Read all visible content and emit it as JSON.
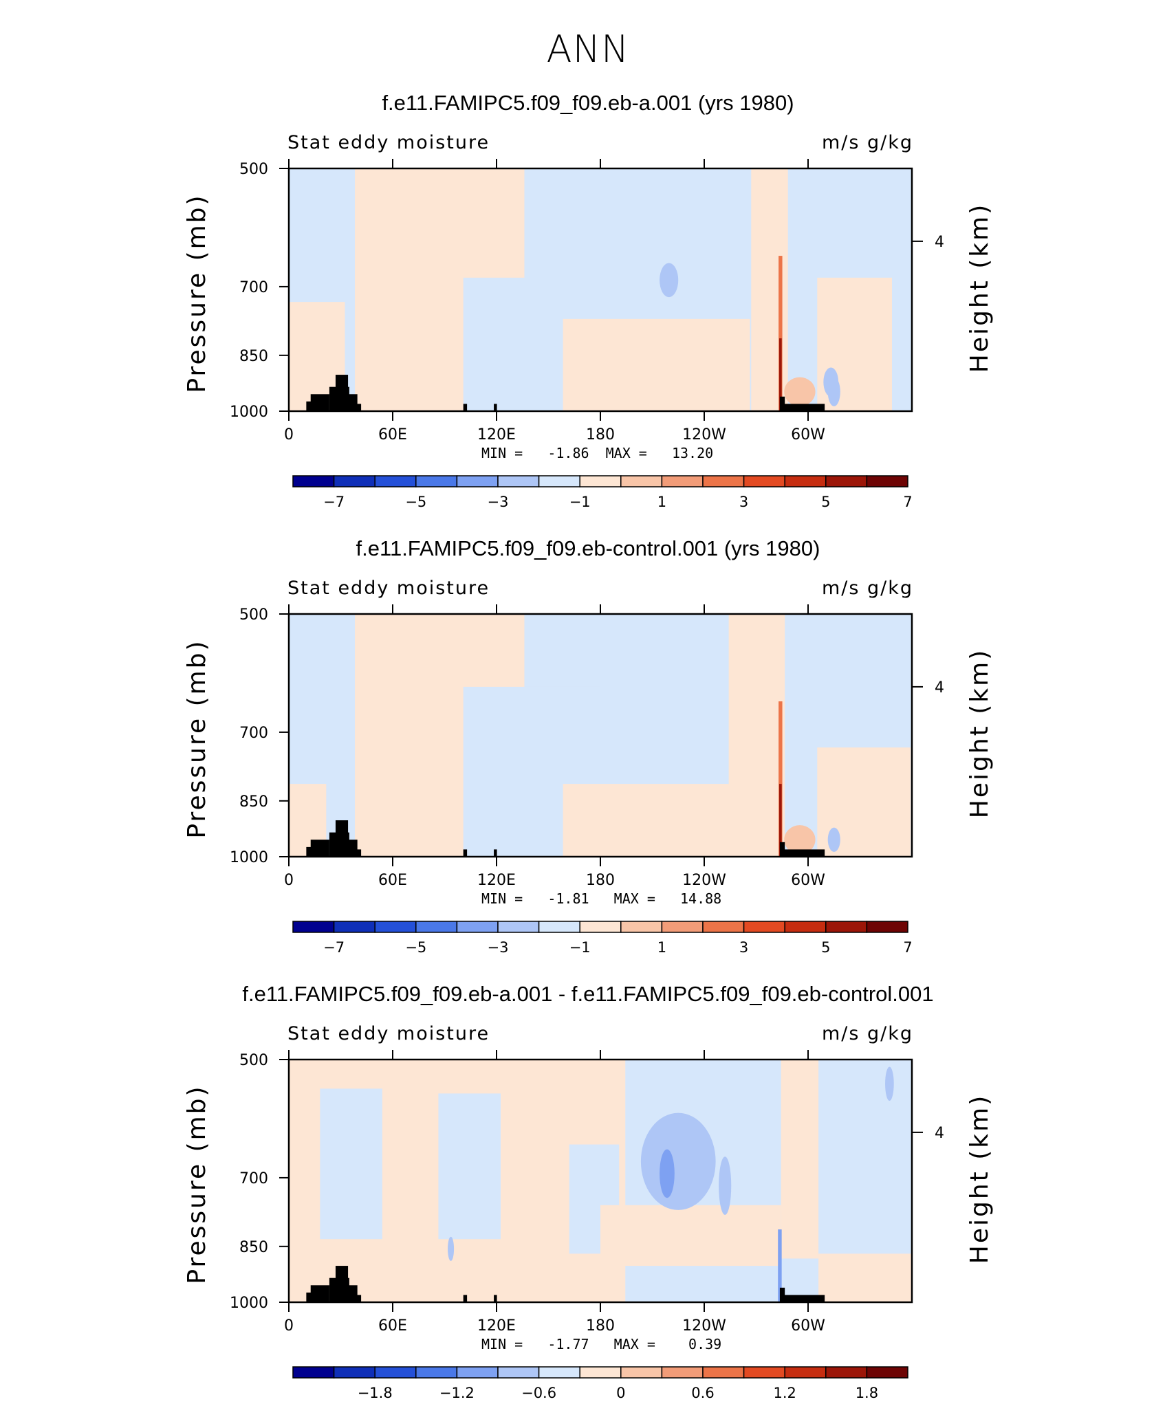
{
  "page": {
    "title": "ANN"
  },
  "chart_data": [
    {
      "type": "contour",
      "title": "f.e11.FAMIPC5.f09_f09.eb-a.001 (yrs 1980)",
      "left_label": "Stat eddy moisture",
      "right_label": "m/s g/kg",
      "ylabel": "Pressure (mb)",
      "y2label": "Height (km)",
      "x_ticks": [
        "0",
        "60E",
        "120E",
        "180",
        "120W",
        "60W"
      ],
      "y_ticks": [
        "500",
        "700",
        "850",
        "1000"
      ],
      "y2_ticks": [
        "4"
      ],
      "min_text": "MIN =   -1.86  MAX =   13.20",
      "min": -1.86,
      "max": 13.2,
      "colorbar": {
        "labels": [
          "-7",
          "-5",
          "-3",
          "-1",
          "1",
          "3",
          "5",
          "7"
        ],
        "colors": [
          "#00008f",
          "#0f2fb8",
          "#2450d8",
          "#4a78e8",
          "#7ea1f2",
          "#aec6f6",
          "#d6e7fb",
          "#fde6d4",
          "#f8c5a8",
          "#f29c78",
          "#ec7448",
          "#e34a22",
          "#c62d10",
          "#9c1608",
          "#6e0404"
        ]
      }
    },
    {
      "type": "contour",
      "title": "f.e11.FAMIPC5.f09_f09.eb-control.001 (yrs 1980)",
      "left_label": "Stat eddy moisture",
      "right_label": "m/s g/kg",
      "ylabel": "Pressure (mb)",
      "y2label": "Height (km)",
      "x_ticks": [
        "0",
        "60E",
        "120E",
        "180",
        "120W",
        "60W"
      ],
      "y_ticks": [
        "500",
        "700",
        "850",
        "1000"
      ],
      "y2_ticks": [
        "4"
      ],
      "min_text": "MIN =   -1.81   MAX =   14.88",
      "min": -1.81,
      "max": 14.88,
      "colorbar": {
        "labels": [
          "-7",
          "-5",
          "-3",
          "-1",
          "1",
          "3",
          "5",
          "7"
        ],
        "colors": [
          "#00008f",
          "#0f2fb8",
          "#2450d8",
          "#4a78e8",
          "#7ea1f2",
          "#aec6f6",
          "#d6e7fb",
          "#fde6d4",
          "#f8c5a8",
          "#f29c78",
          "#ec7448",
          "#e34a22",
          "#c62d10",
          "#9c1608",
          "#6e0404"
        ]
      }
    },
    {
      "type": "contour",
      "title": "f.e11.FAMIPC5.f09_f09.eb-a.001 - f.e11.FAMIPC5.f09_f09.eb-control.001",
      "left_label": "Stat eddy moisture",
      "right_label": "m/s g/kg",
      "ylabel": "Pressure (mb)",
      "y2label": "Height (km)",
      "x_ticks": [
        "0",
        "60E",
        "120E",
        "180",
        "120W",
        "60W"
      ],
      "y_ticks": [
        "500",
        "700",
        "850",
        "1000"
      ],
      "y2_ticks": [
        "4"
      ],
      "min_text": "MIN =   -1.77   MAX =    0.39",
      "min": -1.77,
      "max": 0.39,
      "colorbar": {
        "labels": [
          "-1.8",
          "-1.2",
          "-0.6",
          "0",
          "0.6",
          "1.2",
          "1.8"
        ],
        "colors": [
          "#00008f",
          "#0f2fb8",
          "#2450d8",
          "#4a78e8",
          "#7ea1f2",
          "#aec6f6",
          "#d6e7fb",
          "#fde6d4",
          "#f8c5a8",
          "#f29c78",
          "#ec7448",
          "#e34a22",
          "#c62d10",
          "#9c1608",
          "#6e0404"
        ]
      }
    }
  ]
}
